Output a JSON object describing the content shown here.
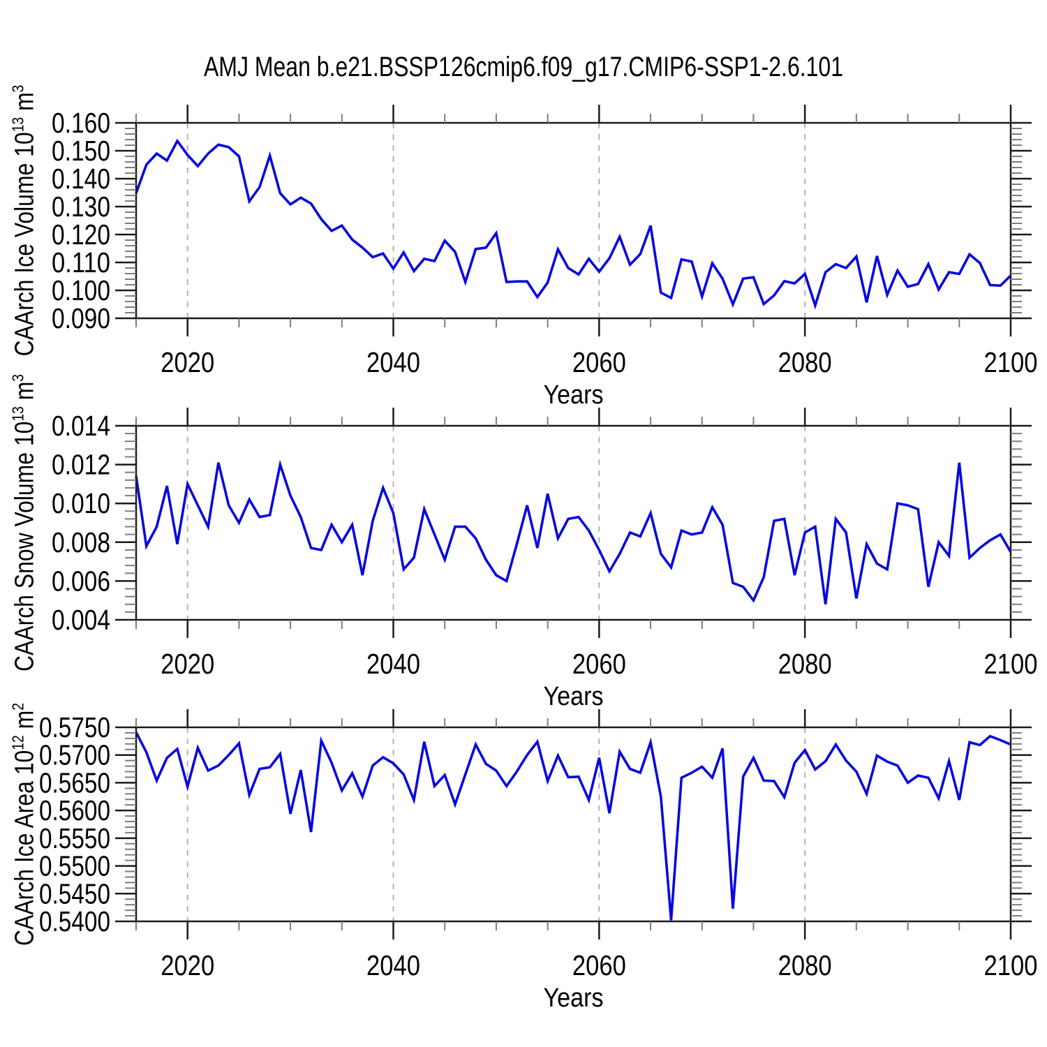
{
  "title": "AMJ Mean b.e21.BSSP126cmip6.f09_g17.CMIP6-SSP1-2.6.101",
  "style": {
    "line_color": "#0707E0",
    "frame_color": "#1a1a1a",
    "minor_tick_color": "#7d7d7d",
    "grid_color": "#ababab",
    "text_color": "#000000",
    "background": "#ffffff"
  },
  "x_axis": {
    "label": "Years",
    "tick_labels": [
      "2020",
      "2040",
      "2060",
      "2080",
      "2100"
    ],
    "tick_years": [
      2020,
      2040,
      2060,
      2080,
      2100
    ],
    "grid_years": [
      2020,
      2040,
      2060,
      2080
    ],
    "range": [
      2015,
      2100
    ],
    "minor_step": 5
  },
  "chart_data": [
    {
      "type": "line",
      "ylabel": "CAArch Ice Volume 10^13 m^3",
      "ylabel_parts": {
        "pre": "CAArch Ice Volume 10",
        "sup1": "13",
        "mid": " m",
        "sup2": "3"
      },
      "xlabel": "Years",
      "ylim": [
        0.09,
        0.16
      ],
      "xlim": [
        2015,
        2100
      ],
      "grid": "vertical dashed at major x ticks",
      "y_major_step": 0.01,
      "y_minor_step": 0.002,
      "y_ticks": [
        {
          "v": 0.16,
          "label": "0.160"
        },
        {
          "v": 0.15,
          "label": "0.150"
        },
        {
          "v": 0.14,
          "label": "0.140"
        },
        {
          "v": 0.13,
          "label": "0.130"
        },
        {
          "v": 0.12,
          "label": "0.120"
        },
        {
          "v": 0.11,
          "label": "0.110"
        },
        {
          "v": 0.1,
          "label": "0.100"
        },
        {
          "v": 0.09,
          "label": "0.090"
        }
      ],
      "x_start": 2015,
      "x_step": 1,
      "values": [
        0.1348,
        0.145,
        0.149,
        0.1465,
        0.1535,
        0.1485,
        0.1445,
        0.149,
        0.1522,
        0.1513,
        0.148,
        0.1319,
        0.137,
        0.1483,
        0.1348,
        0.1308,
        0.1332,
        0.1311,
        0.1255,
        0.1213,
        0.1232,
        0.1182,
        0.1153,
        0.1119,
        0.1132,
        0.1078,
        0.1136,
        0.1069,
        0.1113,
        0.1105,
        0.1178,
        0.1138,
        0.103,
        0.1148,
        0.1153,
        0.1205,
        0.103,
        0.1032,
        0.1032,
        0.0976,
        0.1028,
        0.1147,
        0.108,
        0.1057,
        0.1113,
        0.1067,
        0.1115,
        0.1192,
        0.1092,
        0.113,
        0.1232,
        0.0992,
        0.0973,
        0.1111,
        0.1103,
        0.0978,
        0.1097,
        0.1042,
        0.095,
        0.1042,
        0.1047,
        0.0951,
        0.0982,
        0.1033,
        0.1025,
        0.1059,
        0.0946,
        0.1065,
        0.1094,
        0.108,
        0.1121,
        0.0957,
        0.1123,
        0.0984,
        0.1071,
        0.1013,
        0.1023,
        0.1094,
        0.1003,
        0.1065,
        0.1059,
        0.1129,
        0.1098,
        0.1019,
        0.1017,
        0.1053
      ]
    },
    {
      "type": "line",
      "ylabel": "CAArch Snow Volume 10^13 m^3",
      "ylabel_parts": {
        "pre": "CAArch Snow Volume 10",
        "sup1": "13",
        "mid": " m",
        "sup2": "3"
      },
      "xlabel": "Years",
      "ylim": [
        0.004,
        0.014
      ],
      "xlim": [
        2015,
        2100
      ],
      "grid": "vertical dashed at major x ticks",
      "y_major_step": 0.002,
      "y_minor_step": 0.0004,
      "y_ticks": [
        {
          "v": 0.014,
          "label": "0.014"
        },
        {
          "v": 0.012,
          "label": "0.012"
        },
        {
          "v": 0.01,
          "label": "0.010"
        },
        {
          "v": 0.008,
          "label": "0.008"
        },
        {
          "v": 0.006,
          "label": "0.006"
        },
        {
          "v": 0.004,
          "label": "0.004"
        }
      ],
      "x_start": 2015,
      "x_step": 1,
      "values": [
        0.0114,
        0.0078,
        0.0088,
        0.0109,
        0.0079,
        0.011,
        0.0099,
        0.0088,
        0.0121,
        0.0099,
        0.009,
        0.0102,
        0.0093,
        0.0094,
        0.012,
        0.0104,
        0.0093,
        0.0077,
        0.0076,
        0.0089,
        0.008,
        0.0089,
        0.0063,
        0.0091,
        0.0108,
        0.0095,
        0.0066,
        0.0072,
        0.0097,
        0.0084,
        0.0071,
        0.0088,
        0.0088,
        0.0082,
        0.0071,
        0.0063,
        0.006,
        0.0079,
        0.0099,
        0.0077,
        0.0105,
        0.0082,
        0.0092,
        0.0093,
        0.0086,
        0.0076,
        0.0065,
        0.0074,
        0.0085,
        0.0083,
        0.0095,
        0.0074,
        0.0067,
        0.0086,
        0.0084,
        0.0085,
        0.0098,
        0.0089,
        0.0059,
        0.0057,
        0.005,
        0.0062,
        0.0091,
        0.0092,
        0.0063,
        0.0085,
        0.0088,
        0.0048,
        0.0092,
        0.0085,
        0.0051,
        0.0079,
        0.0069,
        0.0066,
        0.01,
        0.0099,
        0.0097,
        0.0057,
        0.008,
        0.0073,
        0.0121,
        0.0072,
        0.0077,
        0.0081,
        0.0084,
        0.0075
      ]
    },
    {
      "type": "line",
      "ylabel": "CAArch Ice Area 10^12 m^2",
      "ylabel_parts": {
        "pre": "CAArch Ice Area 10",
        "sup1": "12",
        "mid": " m",
        "sup2": "2"
      },
      "xlabel": "Years",
      "ylim": [
        0.54,
        0.575
      ],
      "xlim": [
        2015,
        2100
      ],
      "grid": "vertical dashed at major x ticks",
      "y_major_step": 0.005,
      "y_minor_step": 0.001,
      "y_ticks": [
        {
          "v": 0.575,
          "label": "0.5750"
        },
        {
          "v": 0.57,
          "label": "0.5700"
        },
        {
          "v": 0.565,
          "label": "0.5650"
        },
        {
          "v": 0.56,
          "label": "0.5600"
        },
        {
          "v": 0.555,
          "label": "0.5550"
        },
        {
          "v": 0.55,
          "label": "0.5500"
        },
        {
          "v": 0.545,
          "label": "0.5450"
        },
        {
          "v": 0.54,
          "label": "0.5400"
        }
      ],
      "x_start": 2015,
      "x_step": 1,
      "values": [
        0.5741,
        0.5705,
        0.5654,
        0.5695,
        0.5711,
        0.5643,
        0.5713,
        0.5672,
        0.5681,
        0.57,
        0.5721,
        0.5628,
        0.5675,
        0.5678,
        0.5702,
        0.5594,
        0.5673,
        0.5561,
        0.5726,
        0.5686,
        0.5636,
        0.5667,
        0.5625,
        0.5681,
        0.5696,
        0.5685,
        0.5665,
        0.5619,
        0.5724,
        0.5644,
        0.5664,
        0.5611,
        0.5665,
        0.5719,
        0.5684,
        0.5672,
        0.5644,
        0.567,
        0.57,
        0.5724,
        0.5653,
        0.5699,
        0.566,
        0.5661,
        0.5619,
        0.5695,
        0.5595,
        0.5706,
        0.5675,
        0.5668,
        0.5723,
        0.5625,
        0.5402,
        0.5659,
        0.5668,
        0.5679,
        0.5659,
        0.5712,
        0.5423,
        0.5661,
        0.5695,
        0.5654,
        0.5653,
        0.5624,
        0.5686,
        0.5709,
        0.5674,
        0.5689,
        0.5719,
        0.569,
        0.567,
        0.563,
        0.5699,
        0.5688,
        0.5681,
        0.565,
        0.5663,
        0.5659,
        0.5622,
        0.5689,
        0.5619,
        0.5723,
        0.5718,
        0.5734,
        0.5727,
        0.5719
      ]
    }
  ]
}
